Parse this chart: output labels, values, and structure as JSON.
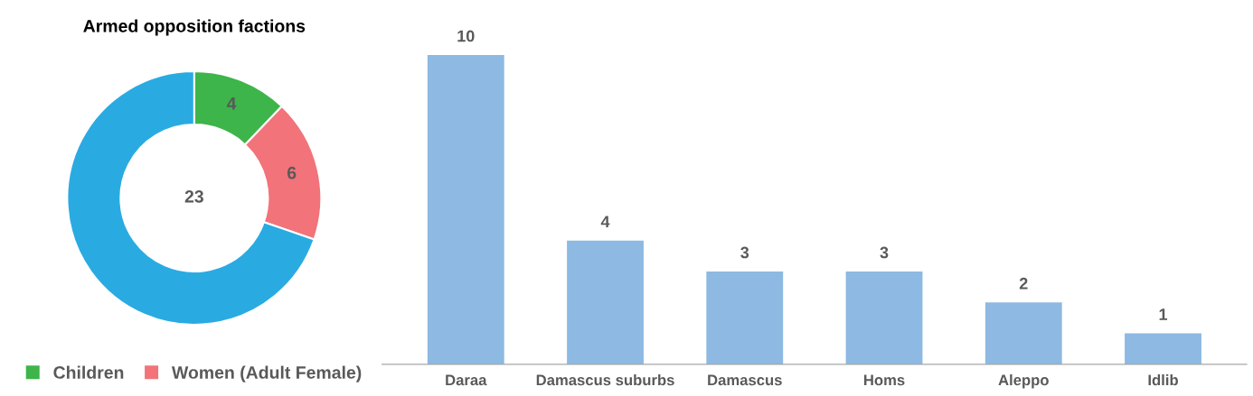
{
  "chart_data": [
    {
      "type": "donut",
      "title": "Armed opposition factions",
      "categories": [
        "Children",
        "Women (Adult Female)",
        null
      ],
      "values": [
        4,
        6,
        23
      ],
      "colors": [
        "#3db54a",
        "#f2737a",
        "#29abe2"
      ],
      "data_labels": true,
      "legend": "bottom"
    },
    {
      "type": "bar",
      "categories": [
        "Daraa",
        "Damascus suburbs",
        "Damascus",
        "Homs",
        "Aleppo",
        "Idlib"
      ],
      "values": [
        10,
        4,
        3,
        3,
        2,
        1
      ],
      "color": "#8db9e2",
      "data_labels": true
    }
  ]
}
